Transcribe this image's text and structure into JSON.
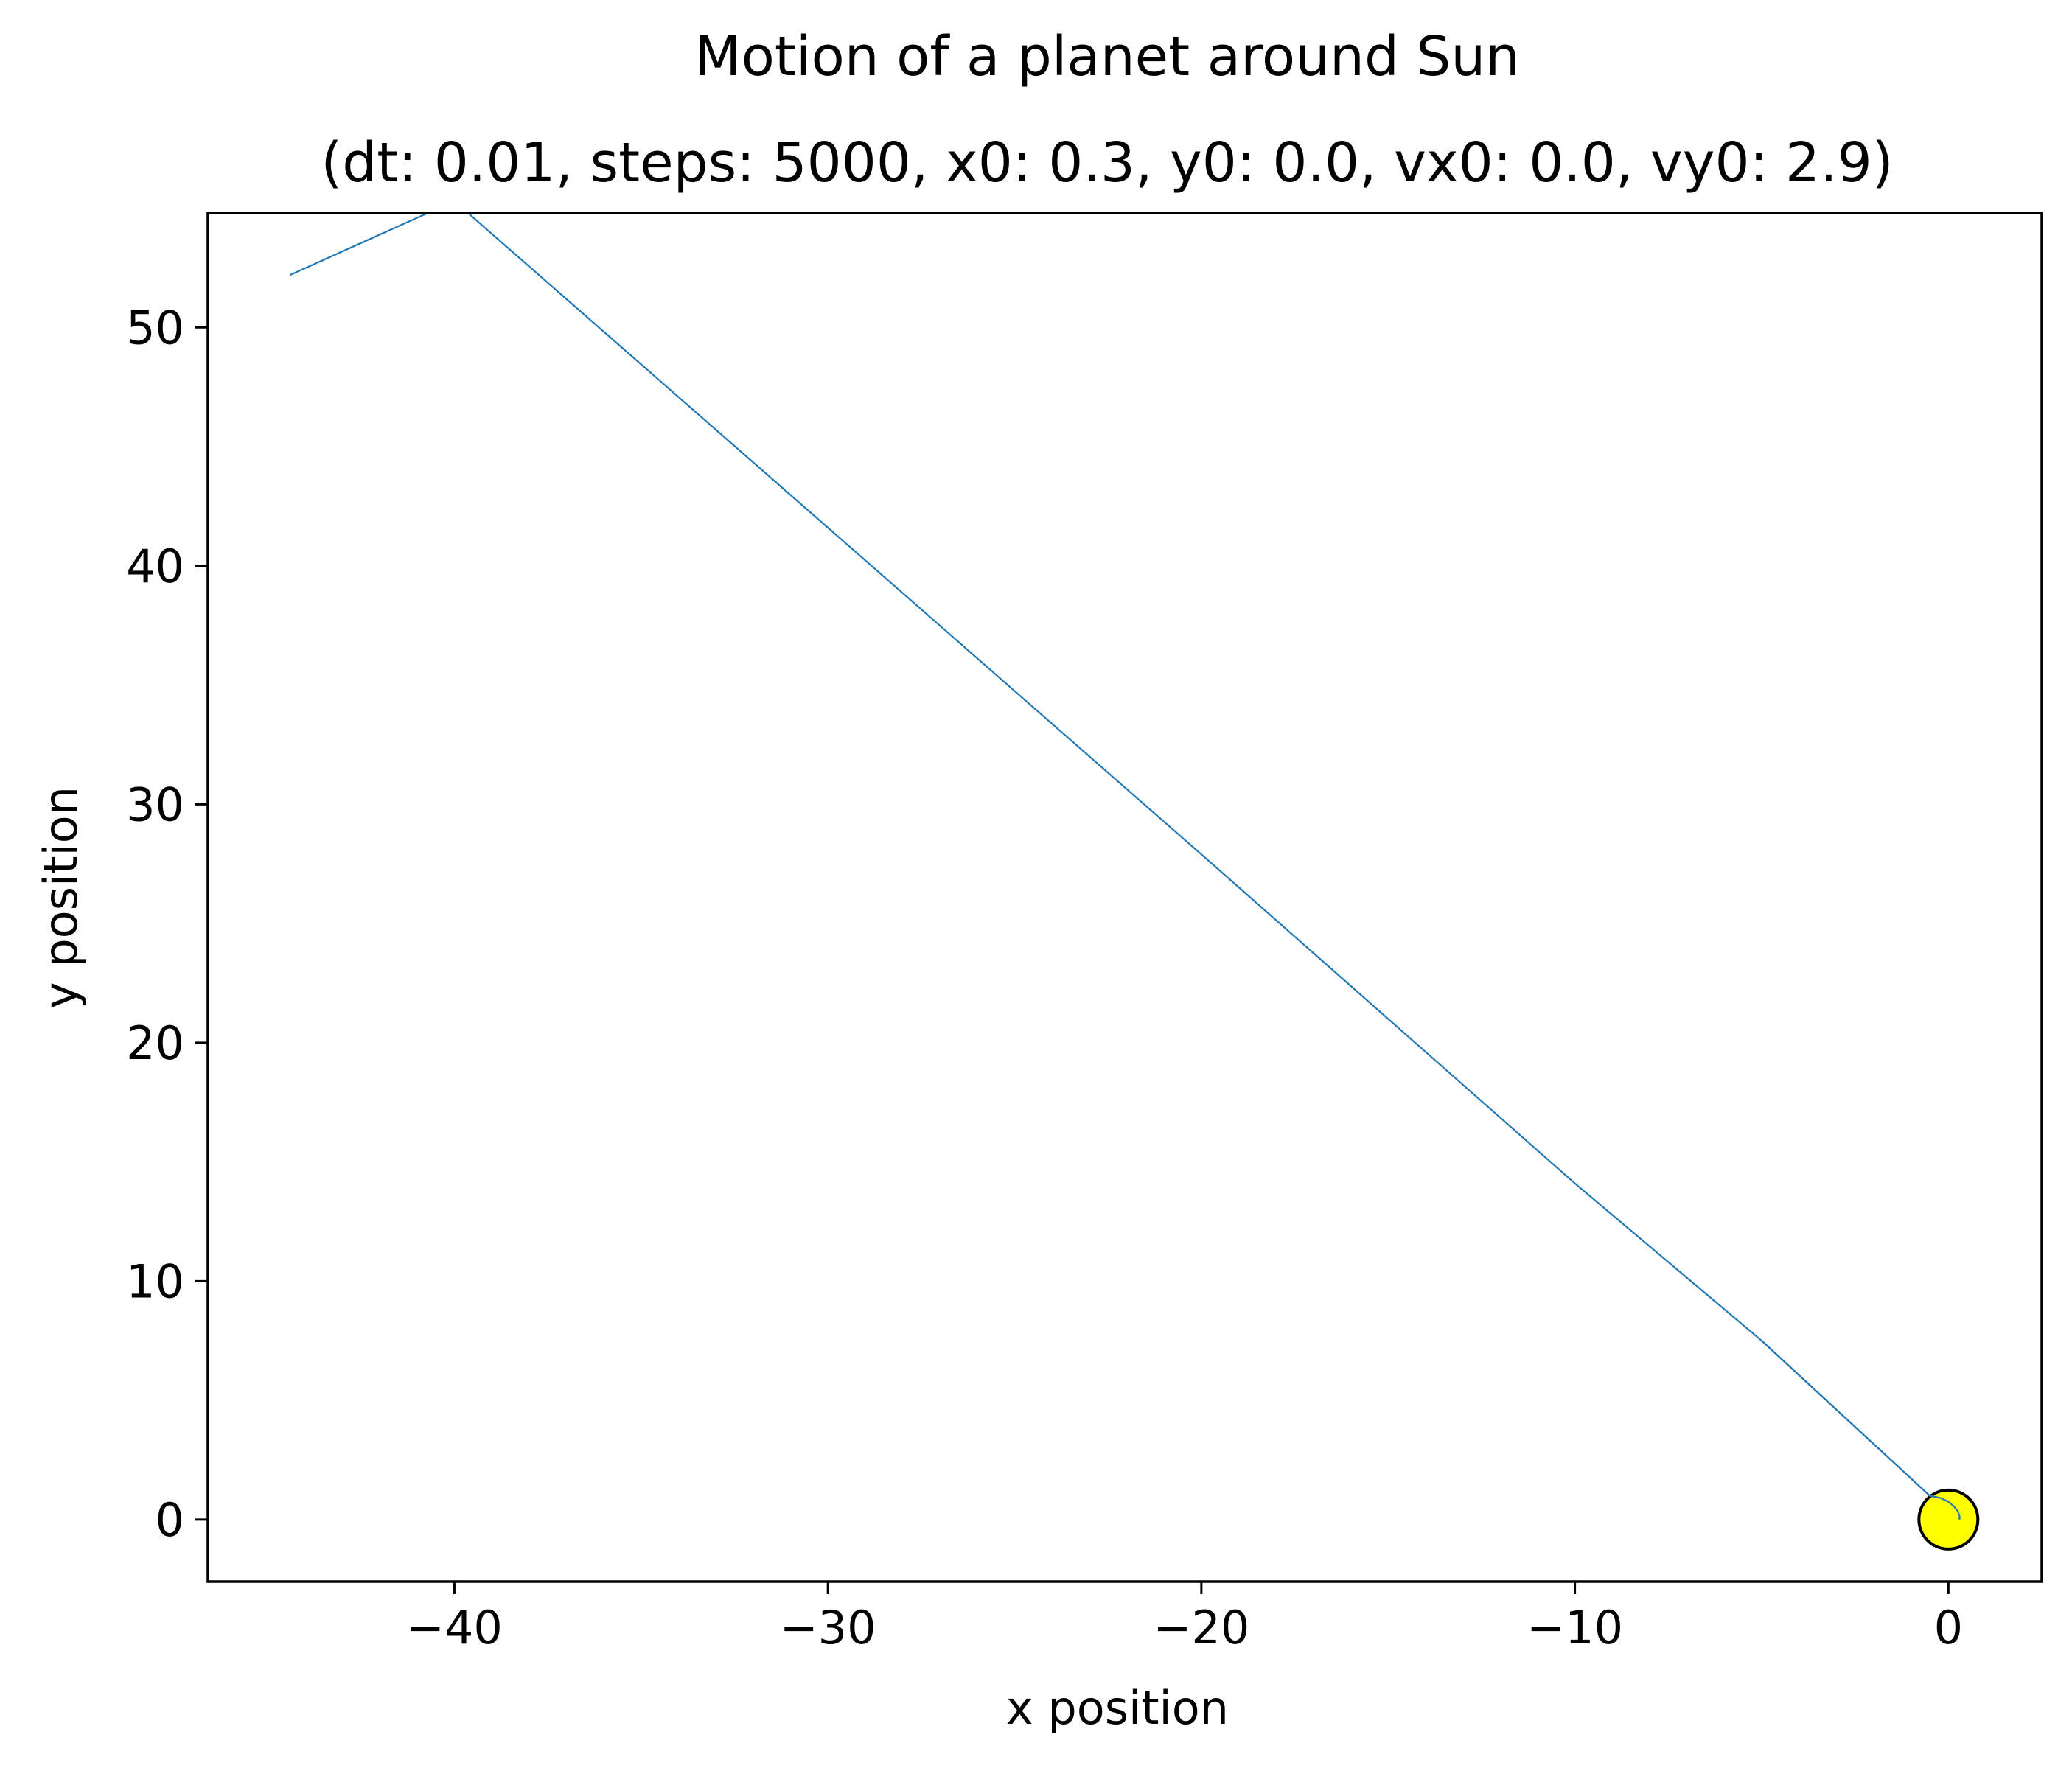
{
  "chart_data": {
    "type": "line",
    "title": "Motion of a planet around Sun",
    "subtitle": "(dt: 0.01, steps: 5000, x0: 0.3, y0: 0.0, vx0: 0.0, vy0: 2.9)",
    "xlabel": "x position",
    "ylabel": "y position",
    "xlim": [
      -46.6,
      2.5
    ],
    "ylim": [
      -2.6,
      54.8
    ],
    "xticks": [
      -40,
      -30,
      -20,
      -10,
      0
    ],
    "xtick_labels": [
      "−40",
      "−30",
      "−20",
      "−10",
      "0"
    ],
    "yticks": [
      0,
      10,
      20,
      30,
      40,
      50
    ],
    "ytick_labels": [
      "0",
      "10",
      "20",
      "30",
      "40",
      "50"
    ],
    "grid": false,
    "series": [
      {
        "color": "#1f77b4",
        "x": [
          0.3,
          0.3,
          0.25,
          0.15,
          0.0,
          -0.2,
          -0.5,
          -5.0,
          -10.0,
          -20.0,
          -30.0,
          -40.0,
          -44.4
        ],
        "y": [
          0.0,
          0.15,
          0.35,
          0.55,
          0.75,
          0.9,
          1.0,
          7.5,
          14.1,
          27.9,
          41.6,
          55.3,
          52.2
        ]
      }
    ],
    "markers": [
      {
        "label": "Sun",
        "x": 0.0,
        "y": 0.0,
        "fill": "#ffff00",
        "edge": "#000000"
      }
    ]
  }
}
